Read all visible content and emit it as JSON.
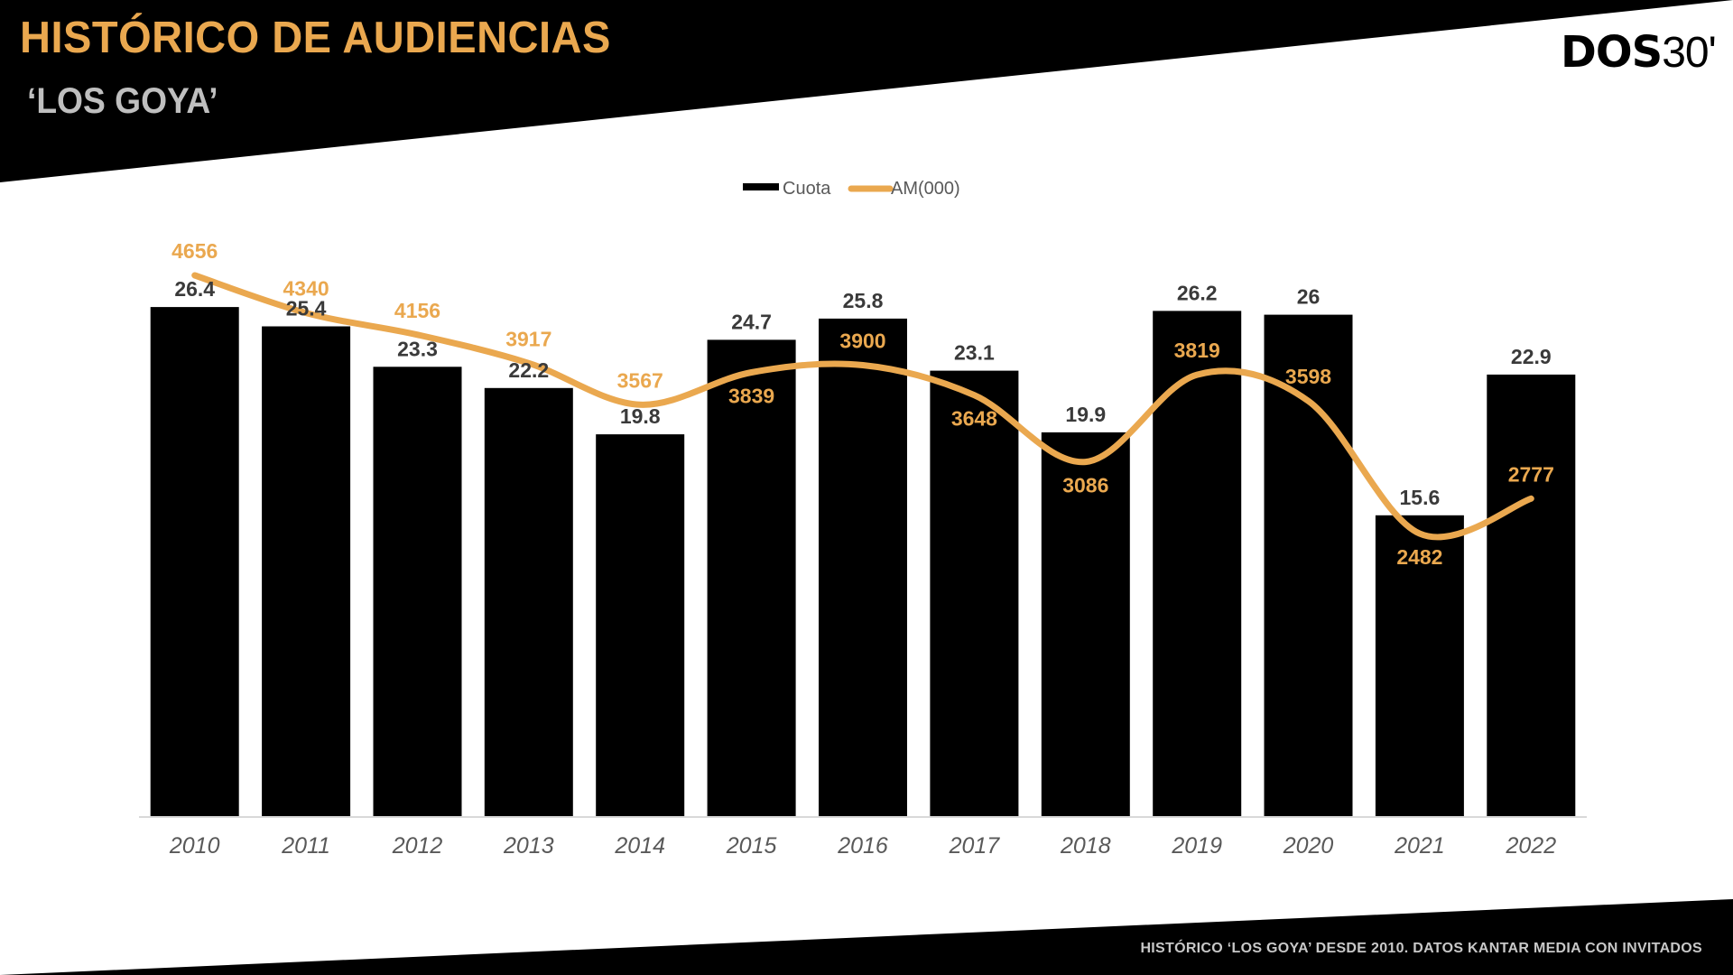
{
  "header": {
    "title": "HISTÓRICO DE AUDIENCIAS",
    "subtitle": "‘LOS GOYA’",
    "logo_bold": "DOS",
    "logo_light": "30'"
  },
  "footer": {
    "note": "HISTÓRICO ‘LOS GOYA’ DESDE 2010. DATOS KANTAR MEDIA CON INVITADOS"
  },
  "colors": {
    "accent": "#EAA84F",
    "bars": "#000000",
    "bar_labels": "#3A3A3A",
    "axis_text": "#595959",
    "axis_line": "#D9D9D9",
    "subtitle": "#BFBFBF",
    "banner": "#000000"
  },
  "chart_data": {
    "type": "bar+line",
    "title": "",
    "xlabel": "",
    "ylabel": "",
    "categories": [
      "2010",
      "2011",
      "2012",
      "2013",
      "2014",
      "2015",
      "2016",
      "2017",
      "2018",
      "2019",
      "2020",
      "2021",
      "2022"
    ],
    "series": [
      {
        "name": "Cuota",
        "type": "bar",
        "axis": "primary",
        "color": "#000000",
        "values": [
          26.4,
          25.4,
          23.3,
          22.2,
          19.8,
          24.7,
          25.8,
          23.1,
          19.9,
          26.2,
          26,
          15.6,
          22.9
        ]
      },
      {
        "name": "AM(000)",
        "type": "line",
        "axis": "secondary",
        "smooth": true,
        "color": "#EAA84F",
        "values": [
          4656,
          4340,
          4156,
          3917,
          3567,
          3839,
          3900,
          3648,
          3086,
          3819,
          3598,
          2482,
          2777
        ],
        "label_position": [
          "above",
          "above",
          "above",
          "above",
          "above",
          "below",
          "above",
          "below",
          "below",
          "above",
          "above",
          "below",
          "above"
        ]
      }
    ],
    "ylim": [
      0,
      30
    ],
    "ylim_secondary": [
      0,
      8000
    ],
    "grid": false,
    "y_axis_visible": false,
    "data_labels": true,
    "legend": {
      "position": "top-center",
      "entries": [
        "Cuota",
        "AM(000)"
      ]
    }
  }
}
